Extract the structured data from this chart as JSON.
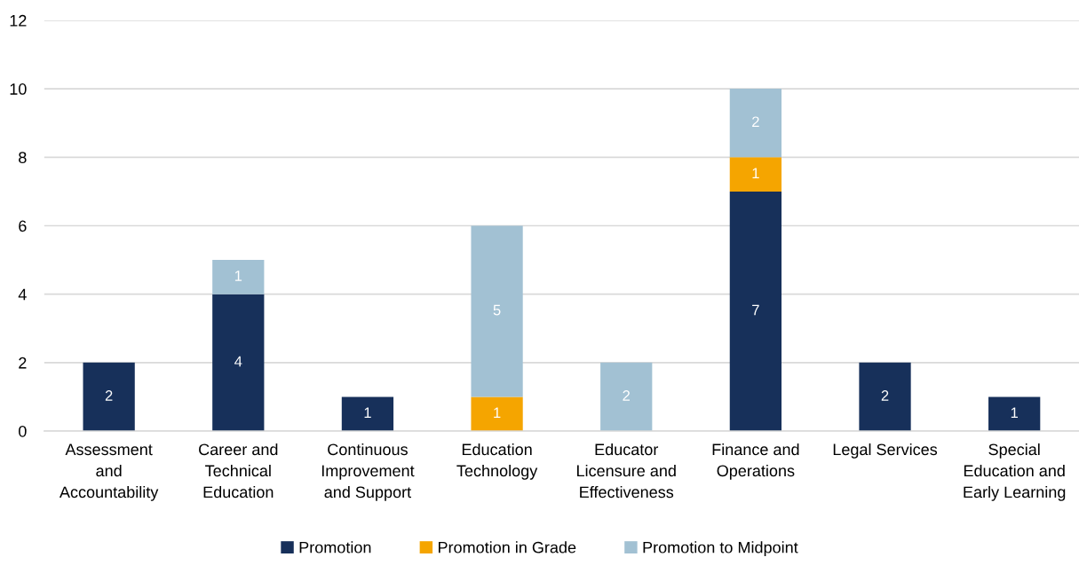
{
  "chart_data": {
    "type": "bar",
    "stacked": true,
    "categories": [
      "Assessment\nand\nAccountability",
      "Career and\nTechnical\nEducation",
      "Continuous\nImprovement\nand Support",
      "Education\nTechnology",
      "Educator\nLicensure and\nEffectiveness",
      "Finance and\nOperations",
      "Legal Services",
      "Special\nEducation and\nEarly Learning"
    ],
    "series": [
      {
        "name": "Promotion",
        "color": "#17305a",
        "values": [
          2,
          4,
          1,
          null,
          null,
          7,
          2,
          1
        ]
      },
      {
        "name": "Promotion in Grade",
        "color": "#f5a500",
        "values": [
          null,
          null,
          null,
          1,
          null,
          1,
          null,
          null
        ]
      },
      {
        "name": "Promotion to Midpoint",
        "color": "#a2c1d3",
        "values": [
          null,
          1,
          null,
          5,
          2,
          2,
          null,
          null
        ]
      }
    ],
    "ylim": [
      0,
      12
    ],
    "yticks": [
      0,
      2,
      4,
      6,
      8,
      10,
      12
    ],
    "grid": "y",
    "legend": "bottom",
    "data_labels": true
  }
}
